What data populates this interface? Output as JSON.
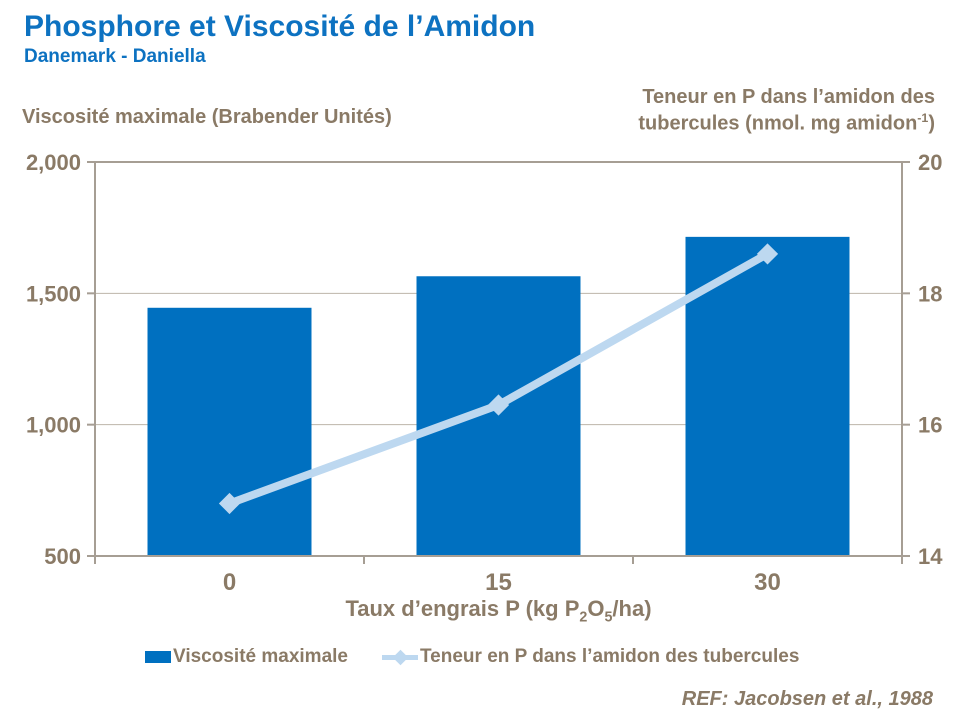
{
  "header": {
    "title": "Phosphore et Viscosité de l’Amidon",
    "subtitle": "Danemark - Daniella"
  },
  "chart_data": {
    "type": "combo-bar-line",
    "categories": [
      "0",
      "15",
      "30"
    ],
    "series": [
      {
        "name": "Viscosité maximale",
        "type": "bar",
        "axis": "left",
        "values": [
          1445,
          1565,
          1715
        ],
        "color": "#0070C0"
      },
      {
        "name": "Teneur en P dans l’amidon des tubercules",
        "type": "line",
        "axis": "right",
        "values": [
          14.8,
          16.3,
          18.6
        ],
        "color": "#BDD8F0"
      }
    ],
    "left_axis": {
      "title": "Viscosité maximale (Brabender Unités)",
      "min": 500,
      "max": 2000,
      "tick_values": [
        2000,
        1500,
        1000,
        500
      ],
      "tick_labels": [
        "2,000",
        "1,500",
        "1,000",
        "500"
      ]
    },
    "right_axis": {
      "title_parts": [
        {
          "t": "Teneur en P dans l’amidon des"
        },
        {
          "br": true
        },
        {
          "t": "tubercules (nmol. mg amidon"
        },
        {
          "t": "-1",
          "sup": true
        },
        {
          "t": ")"
        }
      ],
      "min": 14,
      "max": 20,
      "tick_values": [
        20,
        18,
        16,
        14
      ],
      "tick_labels": [
        "20",
        "18",
        "16",
        "14"
      ]
    },
    "x_axis": {
      "title_parts": [
        {
          "t": "Taux d’engrais P (kg P"
        },
        {
          "t": "2",
          "sub": true
        },
        {
          "t": "O"
        },
        {
          "t": "5",
          "sub": true
        },
        {
          "t": "/ha)"
        }
      ],
      "labels": [
        "0",
        "15",
        "30"
      ]
    },
    "grid": true,
    "legend_position": "bottom"
  },
  "legend": {
    "items": [
      {
        "label": "Viscosité maximale",
        "swatch": "bar"
      },
      {
        "label": "Teneur en P dans l’amidon des tubercules",
        "swatch": "line"
      }
    ]
  },
  "footer": {
    "reference": "REF: Jacobsen et al., 1988"
  },
  "colors": {
    "accent_blue": "#0D72C1",
    "bar_blue": "#0070C0",
    "line_light_blue": "#BDD8F0",
    "text_taupe": "#8A7A66",
    "axis_gray": "#A69E94",
    "gridline_gray": "#BDB5A9"
  }
}
